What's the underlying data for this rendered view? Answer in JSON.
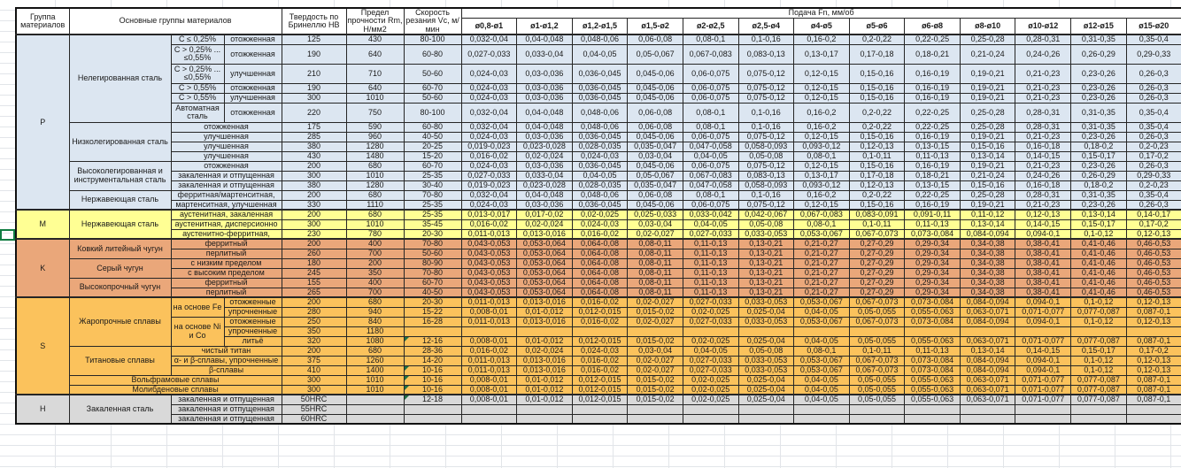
{
  "colors": {
    "p": "#DCE6F1",
    "m": "#FFFF94",
    "k": "#EAA77A",
    "s": "#FBC25C",
    "h": "#D9D9D9",
    "note": "#1E7145",
    "selection": "#107C41"
  },
  "header": {
    "group": "Группа материалов",
    "material": "Основные группы материалов",
    "hardness": "Твердость по Бринеллю HB",
    "strength": "Предел прочности Rm, Н/мм2",
    "speed": "Скорость резания Vc, м/мин",
    "feed": "Подача Fn, мм/об",
    "feed_columns": [
      "ø0,8-ø1",
      "ø1-ø1,2",
      "ø1,2-ø1,5",
      "ø1,5-ø2",
      "ø2-ø2,5",
      "ø2,5-ø4",
      "ø4-ø5",
      "ø5-ø6",
      "ø6-ø8",
      "ø8-ø10",
      "ø10-ø12",
      "ø12-ø15",
      "ø15-ø20"
    ]
  },
  "feed_sets": {
    "A": [
      "0,032-0,04",
      "0,04-0,048",
      "0,048-0,06",
      "0,06-0,08",
      "0,08-0,1",
      "0,1-0,16",
      "0,16-0,2",
      "0,2-0,22",
      "0,22-0,25",
      "0,25-0,28",
      "0,28-0,31",
      "0,31-0,35",
      "0,35-0,4"
    ],
    "B": [
      "0,027-0,033",
      "0,033-0,04",
      "0,04-0,05",
      "0,05-0,067",
      "0,067-0,083",
      "0,083-0,13",
      "0,13-0,17",
      "0,17-0,18",
      "0,18-0,21",
      "0,21-0,24",
      "0,24-0,26",
      "0,26-0,29",
      "0,29-0,33"
    ],
    "C": [
      "0,024-0,03",
      "0,03-0,036",
      "0,036-0,045",
      "0,045-0,06",
      "0,06-0,075",
      "0,075-0,12",
      "0,12-0,15",
      "0,15-0,16",
      "0,16-0,19",
      "0,19-0,21",
      "0,21-0,23",
      "0,23-0,26",
      "0,26-0,3"
    ],
    "D": [
      "0,019-0,023",
      "0,023-0,028",
      "0,028-0,035",
      "0,035-0,047",
      "0,047-0,058",
      "0,058-0,093",
      "0,093-0,12",
      "0,12-0,13",
      "0,13-0,15",
      "0,15-0,16",
      "0,16-0,18",
      "0,18-0,2",
      "0,2-0,23"
    ],
    "E": [
      "0,016-0,02",
      "0,02-0,024",
      "0,024-0,03",
      "0,03-0,04",
      "0,04-0,05",
      "0,05-0,08",
      "0,08-0,1",
      "0,1-0,11",
      "0,11-0,13",
      "0,13-0,14",
      "0,14-0,15",
      "0,15-0,17",
      "0,17-0,2"
    ],
    "F": [
      "0,013-0,017",
      "0,017-0,02",
      "0,02-0,025",
      "0,025-0,033",
      "0,033-0,042",
      "0,042-0,067",
      "0,067-0,083",
      "0,083-0,091",
      "0,091-0,11",
      "0,11-0,12",
      "0,12-0,13",
      "0,13-0,14",
      "0,14-0,17"
    ],
    "G": [
      "0,011-0,013",
      "0,013-0,016",
      "0,016-0,02",
      "0,02-0,027",
      "0,027-0,033",
      "0,033-0,053",
      "0,053-0,067",
      "0,067-0,073",
      "0,073-0,084",
      "0,084-0,094",
      "0,094-0,1",
      "0,1-0,12",
      "0,12-0,13"
    ],
    "H": [
      "0,008-0,01",
      "0,01-0,012",
      "0,012-0,015",
      "0,015-0,02",
      "0,02-0,025",
      "0,025-0,04",
      "0,04-0,05",
      "0,05-0,055",
      "0,055-0,063",
      "0,063-0,071",
      "0,071-0,077",
      "0,077-0,087",
      "0,087-0,1"
    ],
    "K": [
      "0,043-0,053",
      "0,053-0,064",
      "0,064-0,08",
      "0,08-0,11",
      "0,11-0,13",
      "0,13-0,21",
      "0,21-0,27",
      "0,27-0,29",
      "0,29-0,34",
      "0,34-0,38",
      "0,38-0,41",
      "0,41-0,46",
      "0,46-0,53"
    ],
    "X": [
      "",
      "",
      "",
      "",
      "",
      "",
      "",
      "",
      "",
      "",
      "",
      "",
      ""
    ]
  },
  "rows": [
    {
      "group": {
        "label": "P",
        "span": 15
      },
      "material": {
        "label": "Нелегированная сталь",
        "span": 6
      },
      "condition": "C ≤ 0,25%",
      "state": "отожженная",
      "hb": "125",
      "rm": "430",
      "vc": "80-100",
      "feeds": "A"
    },
    {
      "condition": "C > 0,25% ... ≤0,55%",
      "state": "отожженная",
      "hb": "190",
      "rm": "640",
      "vc": "60-80",
      "feeds": "B",
      "height": 22
    },
    {
      "condition": "C > 0,25% ... ≤0,55%",
      "state": "улучшенная",
      "hb": "210",
      "rm": "710",
      "vc": "50-60",
      "feeds": "C",
      "height": 22
    },
    {
      "condition": "C > 0,55%",
      "state": "отожженная",
      "hb": "190",
      "rm": "640",
      "vc": "60-70",
      "feeds": "C"
    },
    {
      "condition": "C > 0,55%",
      "state": "улучшенная",
      "hb": "300",
      "rm": "1010",
      "vc": "50-60",
      "feeds": "C"
    },
    {
      "condition": "Автоматная сталь",
      "state": "отожженная",
      "hb": "220",
      "rm": "750",
      "vc": "80-100",
      "feeds": "A",
      "height": 22
    },
    {
      "material": {
        "label": "Низколегированная сталь",
        "span": 4
      },
      "state_wide": "отожженная",
      "hb": "175",
      "rm": "590",
      "vc": "60-80",
      "feeds": "A"
    },
    {
      "state_wide": "улучшенная",
      "hb": "285",
      "rm": "960",
      "vc": "40-50",
      "feeds": "C"
    },
    {
      "state_wide": "улучшенная",
      "hb": "380",
      "rm": "1280",
      "vc": "20-25",
      "feeds": "D"
    },
    {
      "state_wide": "улучшенная",
      "hb": "430",
      "rm": "1480",
      "vc": "15-20",
      "feeds": "E"
    },
    {
      "material": {
        "label": "Высоколегированная и инструментальная сталь",
        "span": 3
      },
      "state_wide": "отожженная",
      "hb": "200",
      "rm": "680",
      "vc": "60-70",
      "feeds": "C"
    },
    {
      "state_wide": "закаленная и отпущенная",
      "hb": "300",
      "rm": "1010",
      "vc": "25-35",
      "feeds": "B"
    },
    {
      "state_wide": "закаленная и отпущенная",
      "hb": "380",
      "rm": "1280",
      "vc": "30-40",
      "feeds": "D"
    },
    {
      "material": {
        "label": "Нержавеющая сталь",
        "span": 2
      },
      "state_wide": "ферритная/мартенситная,",
      "hb": "200",
      "rm": "680",
      "vc": "70-80",
      "feeds": "A"
    },
    {
      "state_wide": "мартенситная, улучшенная",
      "hb": "330",
      "rm": "1110",
      "vc": "25-35",
      "feeds": "C"
    },
    {
      "group": {
        "label": "M",
        "span": 3
      },
      "material": {
        "label": "Нержавеющая сталь",
        "span": 3
      },
      "state_wide": "аустенитная, закаленная",
      "hb": "200",
      "rm": "680",
      "vc": "25-35",
      "feeds": "F"
    },
    {
      "state_wide": "аустенитная, дисперсионно",
      "hb": "300",
      "rm": "1010",
      "vc": "35-45",
      "feeds": "E"
    },
    {
      "state_wide": "аустенитно-ферритная,",
      "hb": "230",
      "rm": "780",
      "vc": "20-30",
      "feeds": "G"
    },
    {
      "group": {
        "label": "K",
        "span": 6
      },
      "material": {
        "label": "Ковкий литейный чугун",
        "span": 2
      },
      "state_wide": "ферритный",
      "hb": "200",
      "rm": "400",
      "vc": "70-80",
      "feeds": "K"
    },
    {
      "state_wide": "перлитный",
      "hb": "260",
      "rm": "700",
      "vc": "50-60",
      "feeds": "K"
    },
    {
      "material": {
        "label": "Серый чугун",
        "span": 2
      },
      "state_wide": "с низким пределом",
      "hb": "180",
      "rm": "200",
      "vc": "80-90",
      "feeds": "K"
    },
    {
      "state_wide": "с высоким пределом",
      "hb": "245",
      "rm": "350",
      "vc": "70-80",
      "feeds": "K"
    },
    {
      "material": {
        "label": "Высокопрочный чугун",
        "span": 2
      },
      "state_wide": "ферритный",
      "hb": "155",
      "rm": "400",
      "vc": "60-70",
      "feeds": "K"
    },
    {
      "state_wide": "перлитный",
      "hb": "265",
      "rm": "700",
      "vc": "40-50",
      "feeds": "K"
    },
    {
      "group": {
        "label": "S",
        "span": 10
      },
      "material": {
        "label": "Жаропрочные сплавы",
        "span": 5
      },
      "condition_span": {
        "label": "на основе Fe",
        "span": 2
      },
      "state": "отожженные",
      "hb": "200",
      "rm": "680",
      "vc": "20-30",
      "feeds": "G"
    },
    {
      "state": "упрочненные",
      "hb": "280",
      "rm": "940",
      "vc": "15-22",
      "feeds": "H"
    },
    {
      "condition_span": {
        "label": "на основе Ni и Co",
        "span": 3
      },
      "state": "отожженные",
      "hb": "250",
      "rm": "840",
      "vc": "16-28",
      "feeds": "G"
    },
    {
      "state": "упрочненные",
      "hb": "350",
      "rm": "1180",
      "vc": "",
      "feeds": "X"
    },
    {
      "state": "литьё",
      "hb": "320",
      "rm": "1080",
      "vc": "12-16",
      "vc_note": true,
      "feeds": "H"
    },
    {
      "material": {
        "label": "Титановые сплавы",
        "span": 3
      },
      "state_wide": "чистый титан",
      "hb": "200",
      "rm": "680",
      "vc": "28-36",
      "feeds": "E"
    },
    {
      "state_wide": "α- и β-сплавы, упрочненные",
      "hb": "375",
      "rm": "1260",
      "vc": "14-20",
      "feeds": "G"
    },
    {
      "state_wide": "β-сплавы",
      "hb": "410",
      "rm": "1400",
      "vc": "10-16",
      "vc_note": true,
      "feeds": "G"
    },
    {
      "material_wide": "Вольфрамовые сплавы",
      "hb": "300",
      "rm": "1010",
      "vc": "10-16",
      "vc_note": true,
      "feeds": "H"
    },
    {
      "material_wide": "Молибденовые сплавы",
      "hb": "300",
      "rm": "1010",
      "vc": "10-16",
      "vc_note": true,
      "feeds": "H"
    },
    {
      "group": {
        "label": "H",
        "span": 3
      },
      "material": {
        "label": "Закаленная сталь",
        "span": 3
      },
      "state_wide": "закаленная и отпущенная",
      "hb": "50HRC",
      "rm": "",
      "vc": "12-18",
      "vc_note": true,
      "feeds": "H"
    },
    {
      "state_wide": "закаленная и отпущенная",
      "hb": "55HRC",
      "rm": "",
      "vc": "",
      "feeds": "X"
    },
    {
      "state_wide": "закаленная и отпущенная",
      "hb": "60HRC",
      "rm": "",
      "vc": "",
      "feeds": "X"
    }
  ]
}
